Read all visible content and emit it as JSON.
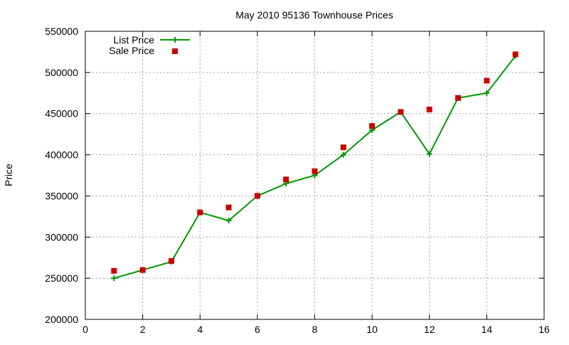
{
  "chart_data": {
    "type": "line",
    "title": "May 2010 95136 Townhouse Prices",
    "xlabel": "",
    "ylabel": "Price",
    "xlim": [
      0,
      16
    ],
    "ylim": [
      200000,
      550000
    ],
    "x_ticks": [
      0,
      2,
      4,
      6,
      8,
      10,
      12,
      14,
      16
    ],
    "y_ticks": [
      200000,
      250000,
      300000,
      350000,
      400000,
      450000,
      500000,
      550000
    ],
    "grid": true,
    "legend_position": "top-left",
    "series": [
      {
        "name": "List Price",
        "style": "line-with-plus-markers",
        "color": "#009900",
        "x": [
          1,
          2,
          3,
          4,
          5,
          6,
          7,
          8,
          9,
          10,
          11,
          12,
          13,
          14,
          15
        ],
        "y": [
          250000,
          260000,
          270000,
          330000,
          320000,
          350000,
          365000,
          375000,
          400000,
          430000,
          452000,
          401000,
          469000,
          475000,
          520000
        ]
      },
      {
        "name": "Sale Price",
        "style": "square-markers",
        "color": "#cc0000",
        "x": [
          1,
          2,
          3,
          4,
          5,
          6,
          7,
          8,
          9,
          10,
          11,
          12,
          13,
          14,
          15
        ],
        "y": [
          259000,
          260000,
          271000,
          330000,
          336000,
          350000,
          370000,
          380000,
          409000,
          435000,
          452000,
          455000,
          469000,
          490000,
          522000
        ]
      }
    ]
  }
}
